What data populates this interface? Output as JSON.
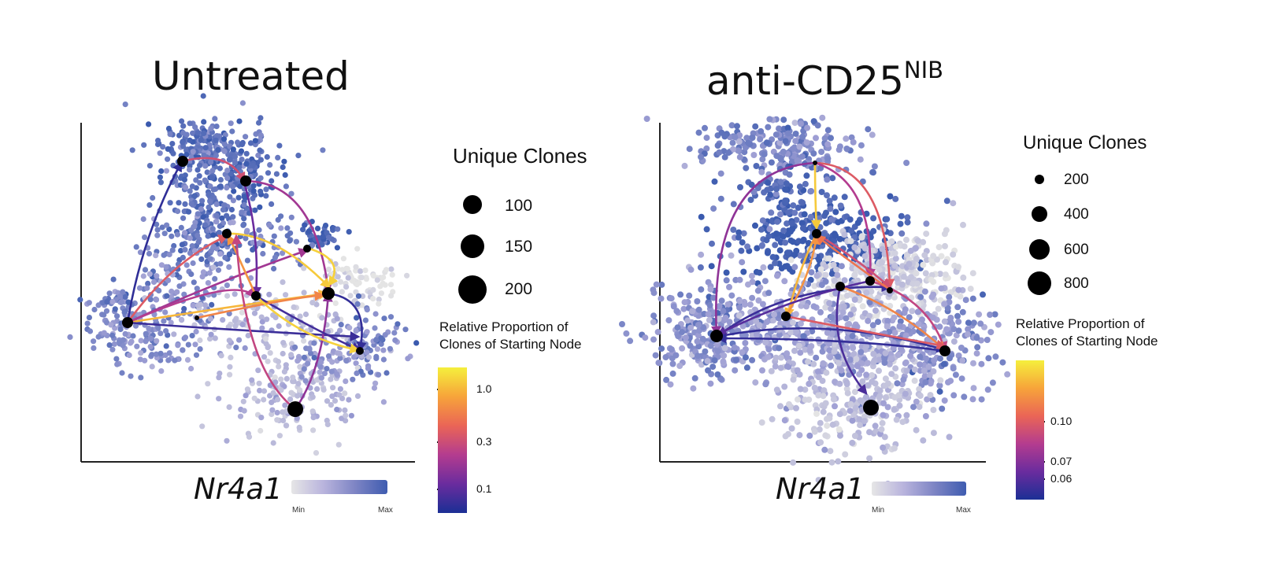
{
  "panels": [
    {
      "title": "Untreated",
      "title_sup": "",
      "gene": "Nr4a1",
      "min_label": "Min",
      "max_label": "Max",
      "size_legend": {
        "title": "Unique Clones",
        "values": [
          "100",
          "150",
          "200"
        ]
      },
      "color_legend": {
        "title_line1": "Relative Proportion of",
        "title_line2": "Clones of Starting Node",
        "ticks": [
          "1.0",
          "0.3",
          "0.1"
        ]
      }
    },
    {
      "title": "anti-CD25",
      "title_sup": "NIB",
      "gene": "Nr4a1",
      "min_label": "Min",
      "max_label": "Max",
      "size_legend": {
        "title": "Unique Clones",
        "values": [
          "200",
          "400",
          "600",
          "800"
        ]
      },
      "color_legend": {
        "title_line1": "Relative Proportion of",
        "title_line2": "Clones of Starting Node",
        "ticks": [
          "0.10",
          "0.07",
          "0.06"
        ]
      }
    }
  ],
  "chart_data": [
    {
      "type": "scatter",
      "title": "Untreated",
      "color_scale": {
        "label": "Nr4a1",
        "min": "Min",
        "max": "Max",
        "colors": [
          "#e6e6e6",
          "#3f5cb0"
        ]
      },
      "size_legend": {
        "title": "Unique Clones",
        "values": [
          100,
          150,
          200
        ]
      },
      "edge_color_legend": {
        "title": "Relative Proportion of Clones of Starting Node",
        "ticks": [
          1.0,
          0.3,
          0.1
        ]
      },
      "nodes": [
        {
          "id": "n1",
          "clones": 150
        },
        {
          "id": "n2",
          "clones": 150
        },
        {
          "id": "n3",
          "clones": 120
        },
        {
          "id": "n4",
          "clones": 100
        },
        {
          "id": "n5",
          "clones": 150
        },
        {
          "id": "n6",
          "clones": 180
        },
        {
          "id": "n7",
          "clones": 160
        },
        {
          "id": "n8",
          "clones": 90
        },
        {
          "id": "n9",
          "clones": 110
        },
        {
          "id": "n10",
          "clones": 200
        }
      ],
      "edges": [
        {
          "from": "n7",
          "to": "n1",
          "proportion": 0.1
        },
        {
          "from": "n7",
          "to": "n5",
          "proportion": 1.0
        },
        {
          "from": "n7",
          "to": "n6",
          "proportion": 0.3
        },
        {
          "from": "n7",
          "to": "n9",
          "proportion": 0.1
        },
        {
          "from": "n7",
          "to": "n3",
          "proportion": 0.3
        },
        {
          "from": "n10",
          "to": "n6",
          "proportion": 0.2
        },
        {
          "from": "n2",
          "to": "n6",
          "proportion": 0.2
        },
        {
          "from": "n3",
          "to": "n6",
          "proportion": 1.0
        },
        {
          "from": "n6",
          "to": "n2",
          "proportion": 0.2
        },
        {
          "from": "n5",
          "to": "n9",
          "proportion": 0.1
        },
        {
          "from": "n1",
          "to": "n2",
          "proportion": 0.3
        }
      ]
    },
    {
      "type": "scatter",
      "title": "anti-CD25NIB",
      "color_scale": {
        "label": "Nr4a1",
        "min": "Min",
        "max": "Max",
        "colors": [
          "#e6e6e6",
          "#3f5cb0"
        ]
      },
      "size_legend": {
        "title": "Unique Clones",
        "values": [
          200,
          400,
          600,
          800
        ]
      },
      "edge_color_legend": {
        "title": "Relative Proportion of Clones of Starting Node",
        "ticks": [
          0.1,
          0.07,
          0.06
        ]
      },
      "nodes": [
        {
          "id": "m1",
          "clones": 150
        },
        {
          "id": "m2",
          "clones": 300
        },
        {
          "id": "m3",
          "clones": 250
        },
        {
          "id": "m4",
          "clones": 300
        },
        {
          "id": "m5",
          "clones": 200
        },
        {
          "id": "m6",
          "clones": 400
        },
        {
          "id": "m7",
          "clones": 300
        },
        {
          "id": "m8",
          "clones": 450
        },
        {
          "id": "m9",
          "clones": 700
        }
      ],
      "edges": [
        {
          "from": "m1",
          "to": "m2",
          "proportion": 0.12
        },
        {
          "from": "m1",
          "to": "m6",
          "proportion": 0.08
        },
        {
          "from": "m1",
          "to": "m5",
          "proportion": 0.09
        },
        {
          "from": "m2",
          "to": "m7",
          "proportion": 0.12
        },
        {
          "from": "m6",
          "to": "m7",
          "proportion": 0.06
        },
        {
          "from": "m7",
          "to": "m6",
          "proportion": 0.06
        },
        {
          "from": "m7",
          "to": "m9",
          "proportion": 0.07
        },
        {
          "from": "m3",
          "to": "m7",
          "proportion": 0.1
        }
      ]
    }
  ]
}
